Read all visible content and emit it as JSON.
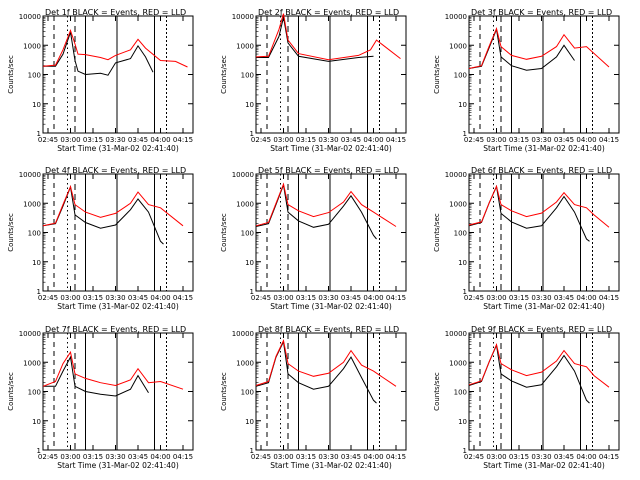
{
  "figure": {
    "xlabel": "Start Time (31-Mar-02 02:41:40)",
    "ylabel": "Counts/sec",
    "title_suffix": " BLACK = Events, RED = LLD",
    "xticks": [
      "02:45",
      "03:00",
      "03:15",
      "03:30",
      "03:45",
      "04:00",
      "04:15"
    ],
    "yticks": [
      "1",
      "10",
      "100",
      "1000",
      "10000"
    ],
    "colors": {
      "events": "#000000",
      "lld": "#ff0000"
    }
  },
  "chart_data": [
    {
      "type": "line",
      "title": "Det 1f BLACK = Events, RED = LLD",
      "xlim": [
        "02:41:40",
        "04:21:40"
      ],
      "ylim": [
        1,
        10000
      ],
      "yscale": "log",
      "series": [
        {
          "name": "Events",
          "x": [
            "02:41:40",
            "02:50",
            "02:55",
            "03:00",
            "03:03",
            "03:05",
            "03:10",
            "03:20",
            "03:25",
            "03:30",
            "03:40",
            "03:45",
            "03:50",
            "03:55"
          ],
          "values": [
            190,
            190,
            500,
            2800,
            300,
            130,
            100,
            110,
            95,
            250,
            350,
            950,
            400,
            120
          ]
        },
        {
          "name": "LLD",
          "x": [
            "02:41:40",
            "02:50",
            "02:55",
            "03:00",
            "03:03",
            "03:05",
            "03:10",
            "03:20",
            "03:25",
            "03:30",
            "03:40",
            "03:45",
            "03:50",
            "04:00",
            "04:10",
            "04:18"
          ],
          "values": [
            190,
            210,
            700,
            3200,
            1100,
            500,
            480,
            380,
            320,
            450,
            700,
            1600,
            800,
            300,
            280,
            180
          ]
        }
      ]
    },
    {
      "type": "line",
      "title": "Det 2f BLACK = Events, RED = LLD",
      "xlim": [
        "02:41:40",
        "04:21:40"
      ],
      "ylim": [
        1,
        10000
      ],
      "yscale": "log",
      "series": [
        {
          "name": "Events",
          "x": [
            "02:41:40",
            "02:50",
            "02:57",
            "03:00",
            "03:03",
            "03:10",
            "03:30",
            "03:50",
            "04:00"
          ],
          "values": [
            380,
            380,
            2000,
            9000,
            1200,
            420,
            280,
            380,
            420
          ]
        },
        {
          "name": "LLD",
          "x": [
            "02:41:40",
            "02:50",
            "02:57",
            "03:00",
            "03:03",
            "03:10",
            "03:30",
            "03:50",
            "03:58",
            "04:02",
            "04:18"
          ],
          "values": [
            400,
            420,
            3500,
            12000,
            1500,
            520,
            320,
            450,
            700,
            1500,
            350
          ]
        }
      ]
    },
    {
      "type": "line",
      "title": "Det 3f BLACK = Events, RED = LLD",
      "xlim": [
        "02:41:40",
        "04:21:40"
      ],
      "ylim": [
        1,
        10000
      ],
      "yscale": "log",
      "series": [
        {
          "name": "Events",
          "x": [
            "02:41:40",
            "02:50",
            "02:55",
            "03:00",
            "03:03",
            "03:10",
            "03:20",
            "03:30",
            "03:40",
            "03:45",
            "03:52"
          ],
          "values": [
            160,
            190,
            800,
            3500,
            400,
            200,
            140,
            160,
            400,
            1000,
            300
          ]
        },
        {
          "name": "LLD",
          "x": [
            "02:41:40",
            "02:50",
            "02:55",
            "03:00",
            "03:03",
            "03:10",
            "03:20",
            "03:30",
            "03:40",
            "03:45",
            "03:52",
            "04:00",
            "04:15"
          ],
          "values": [
            160,
            200,
            900,
            3700,
            900,
            450,
            330,
            420,
            900,
            2300,
            800,
            900,
            180
          ]
        }
      ]
    },
    {
      "type": "line",
      "title": "Det 4f BLACK = Events, RED = LLD",
      "xlim": [
        "02:41:40",
        "04:21:40"
      ],
      "ylim": [
        1,
        10000
      ],
      "yscale": "log",
      "series": [
        {
          "name": "Events",
          "x": [
            "02:41:40",
            "02:50",
            "02:55",
            "03:00",
            "03:03",
            "03:10",
            "03:20",
            "03:30",
            "03:40",
            "03:45",
            "03:52",
            "04:00",
            "04:02"
          ],
          "values": [
            170,
            200,
            800,
            3600,
            400,
            220,
            140,
            180,
            600,
            1400,
            500,
            50,
            40
          ]
        },
        {
          "name": "LLD",
          "x": [
            "02:41:40",
            "02:50",
            "02:55",
            "03:00",
            "03:03",
            "03:10",
            "03:20",
            "03:30",
            "03:40",
            "03:45",
            "03:52",
            "04:00",
            "04:15"
          ],
          "values": [
            170,
            210,
            900,
            3700,
            900,
            500,
            330,
            450,
            1000,
            2400,
            900,
            700,
            170
          ]
        }
      ]
    },
    {
      "type": "line",
      "title": "Det 5f BLACK = Events, RED = LLD",
      "xlim": [
        "02:41:40",
        "04:21:40"
      ],
      "ylim": [
        1,
        10000
      ],
      "yscale": "log",
      "series": [
        {
          "name": "Events",
          "x": [
            "02:41:40",
            "02:50",
            "02:55",
            "03:00",
            "03:03",
            "03:10",
            "03:20",
            "03:30",
            "03:40",
            "03:45",
            "03:52",
            "04:00",
            "04:02"
          ],
          "values": [
            160,
            200,
            900,
            4200,
            500,
            250,
            150,
            190,
            800,
            1800,
            500,
            80,
            60
          ]
        },
        {
          "name": "LLD",
          "x": [
            "02:41:40",
            "02:50",
            "02:55",
            "03:00",
            "03:03",
            "03:10",
            "03:20",
            "03:30",
            "03:40",
            "03:45",
            "03:52",
            "04:00",
            "04:15"
          ],
          "values": [
            170,
            220,
            1000,
            4500,
            900,
            550,
            350,
            480,
            1100,
            2500,
            900,
            500,
            160
          ]
        }
      ]
    },
    {
      "type": "line",
      "title": "Det 6f BLACK = Events, RED = LLD",
      "xlim": [
        "02:41:40",
        "04:21:40"
      ],
      "ylim": [
        1,
        10000
      ],
      "yscale": "log",
      "series": [
        {
          "name": "Events",
          "x": [
            "02:41:40",
            "02:50",
            "02:55",
            "03:00",
            "03:03",
            "03:10",
            "03:20",
            "03:30",
            "03:40",
            "03:45",
            "03:52",
            "04:00",
            "04:02"
          ],
          "values": [
            170,
            220,
            1000,
            3700,
            450,
            230,
            140,
            170,
            700,
            1700,
            500,
            60,
            50
          ]
        },
        {
          "name": "LLD",
          "x": [
            "02:41:40",
            "02:50",
            "02:55",
            "03:00",
            "03:03",
            "03:10",
            "03:20",
            "03:30",
            "03:40",
            "03:45",
            "03:52",
            "04:00",
            "04:05",
            "04:15"
          ],
          "values": [
            180,
            230,
            1000,
            3800,
            900,
            550,
            350,
            460,
            1100,
            2300,
            900,
            700,
            400,
            150
          ]
        }
      ]
    },
    {
      "type": "line",
      "title": "Det 7f BLACK = Events, RED = LLD",
      "xlim": [
        "02:41:40",
        "04:21:40"
      ],
      "ylim": [
        1,
        10000
      ],
      "yscale": "log",
      "series": [
        {
          "name": "Events",
          "x": [
            "02:41:40",
            "02:50",
            "02:55",
            "03:00",
            "03:03",
            "03:10",
            "03:20",
            "03:30",
            "03:40",
            "03:45",
            "03:52"
          ],
          "values": [
            150,
            150,
            500,
            1500,
            150,
            100,
            80,
            70,
            120,
            350,
            90
          ]
        },
        {
          "name": "LLD",
          "x": [
            "02:41:40",
            "02:50",
            "02:55",
            "03:00",
            "03:03",
            "03:10",
            "03:20",
            "03:30",
            "03:40",
            "03:45",
            "03:52",
            "04:00",
            "04:15"
          ],
          "values": [
            150,
            220,
            900,
            2200,
            400,
            280,
            200,
            160,
            250,
            600,
            200,
            220,
            120
          ]
        }
      ]
    },
    {
      "type": "line",
      "title": "Det 8f BLACK = Events, RED = LLD",
      "xlim": [
        "02:41:40",
        "04:21:40"
      ],
      "ylim": [
        1,
        10000
      ],
      "yscale": "log",
      "series": [
        {
          "name": "Events",
          "x": [
            "02:41:40",
            "02:50",
            "02:55",
            "03:00",
            "03:03",
            "03:10",
            "03:20",
            "03:30",
            "03:40",
            "03:45",
            "03:52",
            "04:00",
            "04:02"
          ],
          "values": [
            150,
            200,
            1500,
            5000,
            400,
            200,
            120,
            150,
            600,
            1500,
            300,
            50,
            40
          ]
        },
        {
          "name": "LLD",
          "x": [
            "02:41:40",
            "02:50",
            "02:55",
            "03:00",
            "03:03",
            "03:10",
            "03:20",
            "03:30",
            "03:40",
            "03:45",
            "03:52",
            "04:00",
            "04:15"
          ],
          "values": [
            160,
            220,
            1600,
            5500,
            900,
            500,
            330,
            420,
            1000,
            2500,
            800,
            500,
            150
          ]
        }
      ]
    },
    {
      "type": "line",
      "title": "Det 9f BLACK = Events, RED = LLD",
      "xlim": [
        "02:41:40",
        "04:21:40"
      ],
      "ylim": [
        1,
        10000
      ],
      "yscale": "log",
      "series": [
        {
          "name": "Events",
          "x": [
            "02:41:40",
            "02:50",
            "02:55",
            "03:00",
            "03:03",
            "03:10",
            "03:20",
            "03:30",
            "03:40",
            "03:45",
            "03:52",
            "04:00",
            "04:02"
          ],
          "values": [
            160,
            220,
            1000,
            3800,
            400,
            230,
            140,
            170,
            700,
            1700,
            500,
            50,
            40
          ]
        },
        {
          "name": "LLD",
          "x": [
            "02:41:40",
            "02:50",
            "02:55",
            "03:00",
            "03:03",
            "03:10",
            "03:20",
            "03:30",
            "03:40",
            "03:45",
            "03:52",
            "04:00",
            "04:05",
            "04:15"
          ],
          "values": [
            170,
            230,
            1000,
            4000,
            900,
            550,
            350,
            460,
            1100,
            2500,
            900,
            700,
            350,
            140
          ]
        }
      ]
    }
  ]
}
